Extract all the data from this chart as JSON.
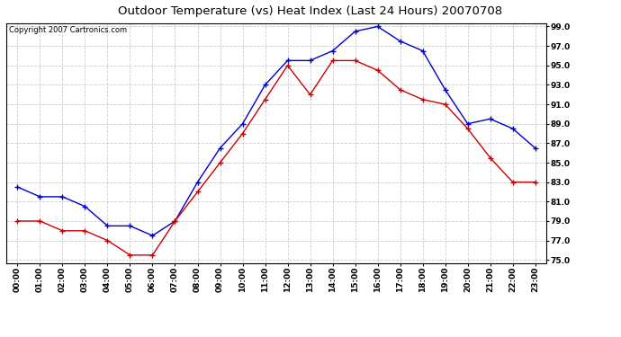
{
  "title": "Outdoor Temperature (vs) Heat Index (Last 24 Hours) 20070708",
  "copyright_text": "Copyright 2007 Cartronics.com",
  "hours": [
    "00:00",
    "01:00",
    "02:00",
    "03:00",
    "04:00",
    "05:00",
    "06:00",
    "07:00",
    "08:00",
    "09:00",
    "10:00",
    "11:00",
    "12:00",
    "13:00",
    "14:00",
    "15:00",
    "16:00",
    "17:00",
    "18:00",
    "19:00",
    "20:00",
    "21:00",
    "22:00",
    "23:00"
  ],
  "blue_data": [
    82.5,
    81.5,
    81.5,
    80.5,
    78.5,
    78.5,
    77.5,
    79.0,
    83.0,
    86.5,
    89.0,
    93.0,
    95.5,
    95.5,
    96.5,
    98.5,
    99.0,
    97.5,
    96.5,
    92.5,
    89.0,
    89.5,
    88.5,
    86.5
  ],
  "red_data": [
    79.0,
    79.0,
    78.0,
    78.0,
    77.0,
    75.5,
    75.5,
    79.0,
    82.0,
    85.0,
    88.0,
    91.5,
    95.0,
    92.0,
    95.5,
    95.5,
    94.5,
    92.5,
    91.5,
    91.0,
    88.5,
    85.5,
    83.0,
    83.0
  ],
  "blue_color": "#0000cc",
  "red_color": "#cc0000",
  "ylim_min": 75.0,
  "ylim_max": 99.0,
  "yticks": [
    75.0,
    77.0,
    79.0,
    81.0,
    83.0,
    85.0,
    87.0,
    89.0,
    91.0,
    93.0,
    95.0,
    97.0,
    99.0
  ],
  "bg_color": "#ffffff",
  "plot_bg_color": "#ffffff",
  "grid_color": "#cccccc",
  "title_fontsize": 9.5,
  "tick_fontsize": 6.5,
  "copyright_fontsize": 6
}
